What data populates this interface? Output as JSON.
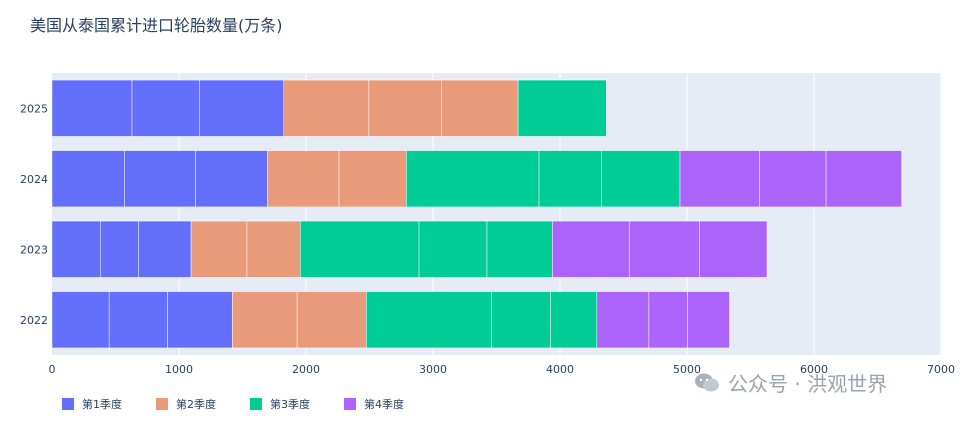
{
  "chart_data": {
    "type": "bar",
    "orientation": "horizontal",
    "barmode": "stack",
    "title": "美国从泰国累计进口轮胎数量(万条)",
    "categories": [
      "2022",
      "2023",
      "2024",
      "2025"
    ],
    "xlim": [
      0,
      7000
    ],
    "x_ticks": [
      "0",
      "1000",
      "2000",
      "3000",
      "4000",
      "5000",
      "6000",
      "7000"
    ],
    "grid": true,
    "legend_position": "bottom-left",
    "series": [
      {
        "name": "第1季度",
        "color": "#636efa",
        "values": [
          1420,
          1095,
          1695,
          1825
        ],
        "segments": [
          [
            450,
            460,
            510
          ],
          [
            380,
            300,
            415
          ],
          [
            570,
            560,
            565
          ],
          [
            630,
            530,
            665
          ]
        ]
      },
      {
        "name": "第2季度",
        "color": "#e99a7b",
        "values": [
          1055,
          860,
          1095,
          1845
        ],
        "segments": [
          [
            510,
            545
          ],
          [
            440,
            420
          ],
          [
            565,
            530
          ],
          [
            670,
            570,
            605
          ]
        ]
      },
      {
        "name": "第3季度",
        "color": "#00cc96",
        "values": [
          1815,
          1985,
          2155,
          695
        ],
        "segments": [
          [
            985,
            465,
            365
          ],
          [
            935,
            535,
            515
          ],
          [
            1045,
            490,
            620
          ],
          [
            695
          ]
        ]
      },
      {
        "name": "第4季度",
        "color": "#ab63fa",
        "values": [
          1045,
          1690,
          1745,
          0
        ],
        "segments": [
          [
            410,
            305,
            330
          ],
          [
            605,
            555,
            530
          ],
          [
            625,
            525,
            595
          ],
          []
        ]
      }
    ]
  },
  "watermark": {
    "text": "公众号 · 洪观世界",
    "icon": "wechat-icon"
  }
}
